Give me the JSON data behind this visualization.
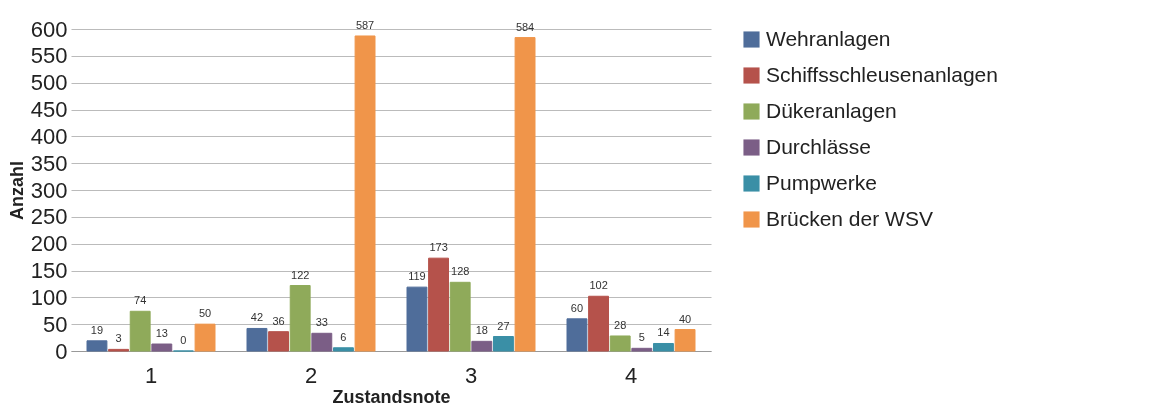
{
  "chart_data": {
    "type": "bar",
    "xlabel": "Zustandsnote",
    "ylabel": "Anzahl",
    "categories": [
      "1",
      "2",
      "3",
      "4"
    ],
    "series": [
      {
        "name": "Wehranlagen",
        "color": "#4f6d9a",
        "values": [
          19,
          42,
          119,
          60
        ]
      },
      {
        "name": "Schiffsschleusenanlagen",
        "color": "#b5524b",
        "values": [
          3,
          36,
          173,
          102
        ]
      },
      {
        "name": "Dükeranlagen",
        "color": "#8faa5a",
        "values": [
          74,
          122,
          128,
          28
        ]
      },
      {
        "name": "Durchlässe",
        "color": "#7b5e86",
        "values": [
          13,
          33,
          18,
          5
        ]
      },
      {
        "name": "Pumpwerke",
        "color": "#3a8fa6",
        "values": [
          0,
          6,
          27,
          14
        ]
      },
      {
        "name": "Brücken der WSV",
        "color": "#f0954a",
        "values": [
          50,
          587,
          584,
          40
        ]
      }
    ],
    "ylim": [
      0,
      600
    ],
    "yticks": [
      0,
      50,
      100,
      150,
      200,
      250,
      300,
      350,
      400,
      450,
      500,
      550,
      600
    ],
    "grid": "y",
    "legend": "right",
    "data_labels": true
  }
}
